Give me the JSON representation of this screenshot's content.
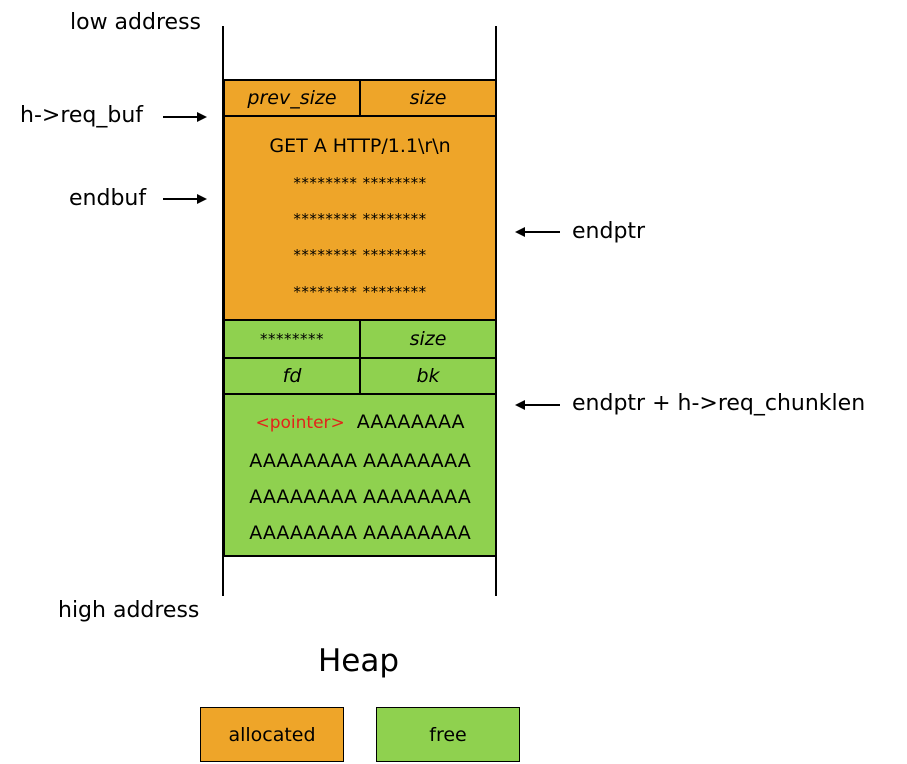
{
  "labels": {
    "low_address": "low address",
    "high_address": "high address",
    "req_buf": "h->req_buf",
    "endbuf": "endbuf",
    "endptr": "endptr",
    "endptr_chunklen": "endptr + h->req_chunklen",
    "title": "Heap"
  },
  "allocated_chunk": {
    "prev_size": "prev_size",
    "size": "size",
    "lines": [
      "GET A HTTP/1.1\\r\\n",
      "******** ********",
      "******** ********",
      "******** ********",
      "******** ********"
    ]
  },
  "free_chunk": {
    "prev_size": "********",
    "size": "size",
    "fd": "fd",
    "bk": "bk",
    "pointer": "<pointer>",
    "first_line_rest": "AAAAAAAA",
    "lines": [
      "AAAAAAAA AAAAAAAA",
      "AAAAAAAA AAAAAAAA",
      "AAAAAAAA AAAAAAAA"
    ]
  },
  "legend": {
    "allocated": "allocated",
    "free": "free"
  },
  "colors": {
    "allocated": "#eea529",
    "free": "#8fd14f",
    "pointer": "#e2231a"
  }
}
